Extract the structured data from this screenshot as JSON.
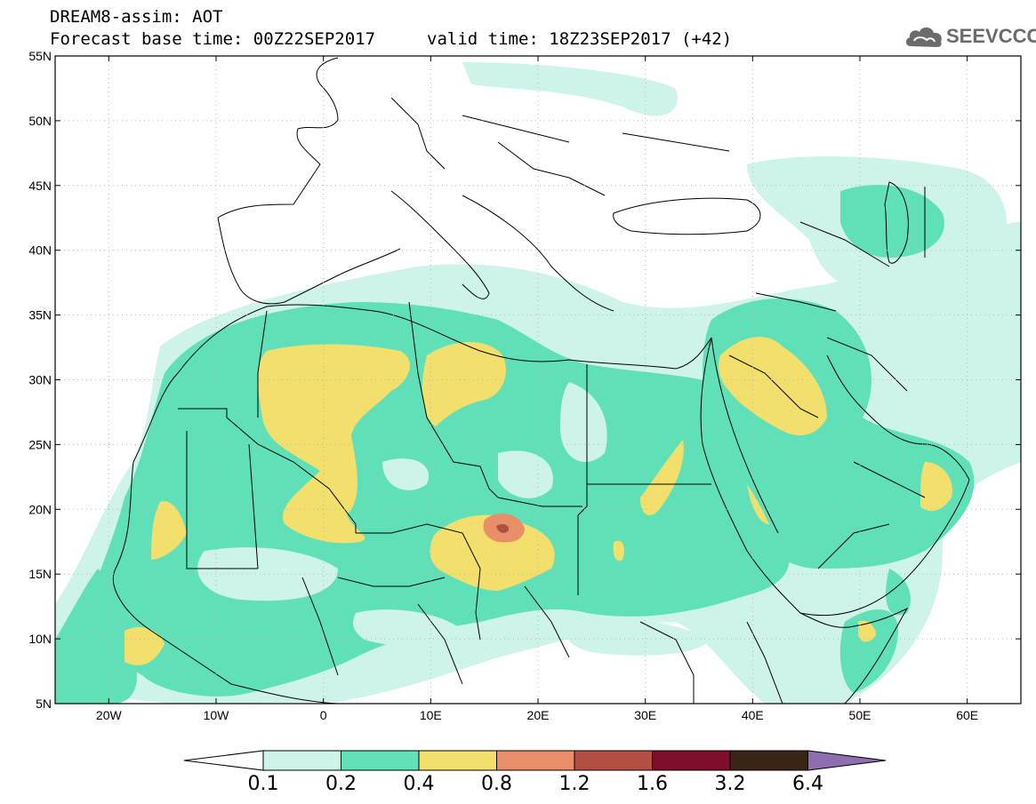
{
  "header": {
    "line1": "DREAM8-assim: AOT",
    "line2": "Forecast base time: 00Z22SEP2017",
    "valid": "valid time: 18Z23SEP2017 (+42)",
    "logo": "SEEVCCC"
  },
  "map": {
    "lat_labels": [
      "55N",
      "50N",
      "45N",
      "40N",
      "35N",
      "30N",
      "25N",
      "20N",
      "15N",
      "10N",
      "5N"
    ],
    "lon_labels": [
      "20W",
      "10W",
      "0",
      "10E",
      "20E",
      "30E",
      "40E",
      "50E",
      "60E"
    ],
    "lat_range": [
      5,
      55
    ],
    "lon_range": [
      -25,
      65
    ]
  },
  "colorbar": {
    "labels": [
      "0.1",
      "0.2",
      "0.4",
      "0.8",
      "1.2",
      "1.6",
      "3.2",
      "6.4"
    ],
    "colors": [
      "#cdf3ea",
      "#5fe0b8",
      "#f3e06c",
      "#e98f68",
      "#b34e42",
      "#7e0d2a",
      "#3a2416",
      "#8e6db0"
    ]
  },
  "colors": {
    "c01": "#cdf3ea",
    "c02": "#5fe0b8",
    "c04": "#f3e06c",
    "c08": "#e98f68",
    "c12": "#b34e42"
  }
}
